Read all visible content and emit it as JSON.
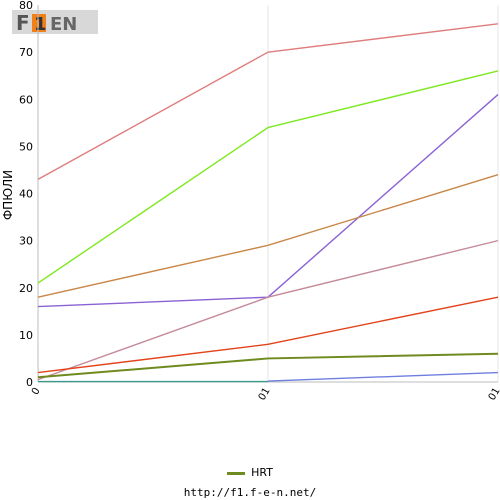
{
  "chart_data": {
    "type": "line",
    "ylabel": "ФПЮЛИ",
    "ylim": [
      0,
      80
    ],
    "yticks": [
      0,
      10,
      20,
      30,
      40,
      50,
      60,
      70,
      80
    ],
    "x_tick_labels": [
      "0",
      "01",
      "01"
    ],
    "grid": "vertical",
    "legend_position": "bottom",
    "series": [
      {
        "name": "",
        "color": "#e07d7d",
        "values": [
          43,
          70,
          76
        ]
      },
      {
        "name": "",
        "color": "#7de81e",
        "values": [
          21,
          54,
          66
        ]
      },
      {
        "name": "",
        "color": "#8a62d4",
        "values": [
          16,
          18,
          61
        ]
      },
      {
        "name": "",
        "color": "#c9884a",
        "values": [
          18,
          29,
          44
        ]
      },
      {
        "name": "",
        "color": "#c48a98",
        "values": [
          0.5,
          18,
          30
        ]
      },
      {
        "name": "",
        "color": "#e2431a",
        "values": [
          2,
          8,
          18
        ]
      },
      {
        "name": "HRT",
        "color": "#6f8a1f",
        "values": [
          1,
          5,
          6
        ]
      },
      {
        "name": "",
        "color": "#6f7fe0",
        "values": [
          null,
          0.2,
          2
        ]
      },
      {
        "name": "",
        "color": "#3c9a8a",
        "values": [
          0.1,
          0.1,
          null
        ]
      }
    ]
  },
  "legend": {
    "label": "HRT",
    "color": "#6f8a1f"
  },
  "footer": {
    "url": "http://f1.f-e-n.net/"
  },
  "logo": {
    "text": "F1EN",
    "icon": "f1en-logo-icon"
  }
}
